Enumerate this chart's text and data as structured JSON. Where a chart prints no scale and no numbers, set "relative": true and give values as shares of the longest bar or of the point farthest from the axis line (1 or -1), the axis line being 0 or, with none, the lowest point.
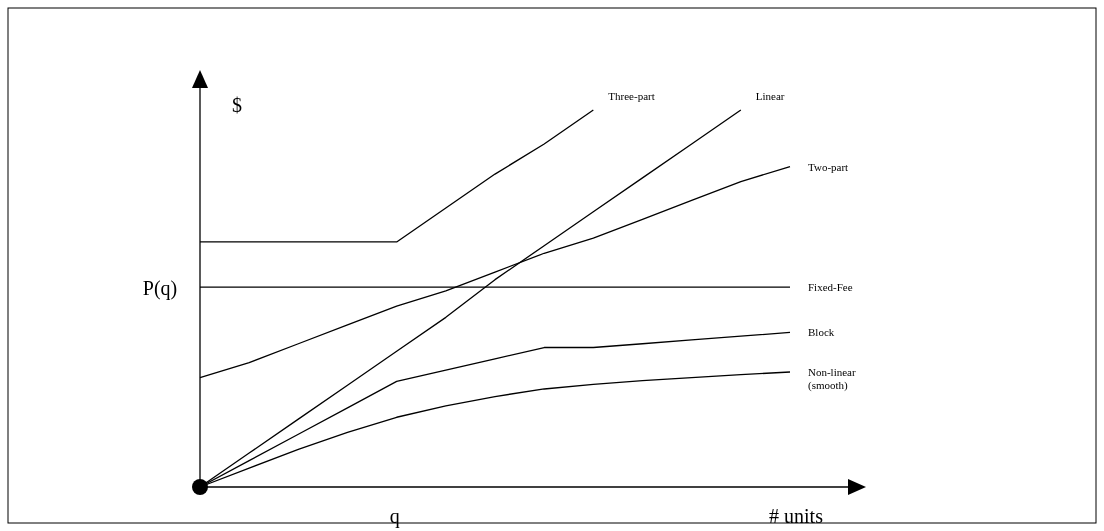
{
  "chart_data": {
    "type": "line",
    "relative": true,
    "xlabel": "# units",
    "ylabel": "$",
    "marker": "none",
    "line_style": "solid",
    "categories": [
      null,
      null,
      null,
      null,
      null,
      null,
      null,
      null,
      null,
      null,
      null,
      null,
      null
    ],
    "series": [
      {
        "name": "Three-part",
        "color": "#000000",
        "values": [
          0.65,
          0.65,
          0.65,
          0.65,
          0.65,
          0.74,
          0.83,
          0.91,
          1.0,
          null,
          null,
          null,
          null
        ]
      },
      {
        "name": "Linear",
        "color": "#000000",
        "values": [
          0,
          0.09,
          0.18,
          0.27,
          0.36,
          0.45,
          0.55,
          0.64,
          0.73,
          0.82,
          0.91,
          1.0,
          null
        ]
      },
      {
        "name": "Two-part",
        "color": "#000000",
        "values": [
          0.29,
          0.33,
          0.38,
          0.43,
          0.48,
          0.52,
          0.57,
          0.62,
          0.66,
          0.71,
          0.76,
          0.81,
          0.85
        ]
      },
      {
        "name": "Fixed-Fee",
        "color": "#000000",
        "values": [
          0.53,
          0.53,
          0.53,
          0.53,
          0.53,
          0.53,
          0.53,
          0.53,
          0.53,
          0.53,
          0.53,
          0.53,
          0.53
        ]
      },
      {
        "name": "Block",
        "color": "#000000",
        "values": [
          0,
          0.07,
          0.14,
          0.21,
          0.28,
          0.31,
          0.34,
          0.37,
          0.37,
          0.38,
          0.39,
          0.4,
          0.41
        ]
      },
      {
        "name": "Non-linear (smooth)",
        "color": "#000000",
        "values": [
          0,
          0.05,
          0.1,
          0.145,
          0.185,
          0.215,
          0.24,
          0.26,
          0.272,
          0.282,
          0.29,
          0.298,
          0.305
        ]
      }
    ],
    "annotations": [
      "P(q)",
      "q"
    ]
  }
}
